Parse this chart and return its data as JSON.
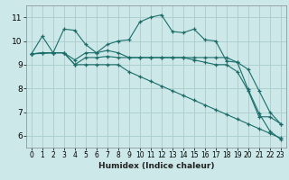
{
  "title": "",
  "xlabel": "Humidex (Indice chaleur)",
  "bg_color": "#cce8e8",
  "grid_color": "#aacccc",
  "line_color": "#1a6e6a",
  "xlim": [
    -0.5,
    23.5
  ],
  "ylim": [
    5.5,
    11.5
  ],
  "xticks": [
    0,
    1,
    2,
    3,
    4,
    5,
    6,
    7,
    8,
    9,
    10,
    11,
    12,
    13,
    14,
    15,
    16,
    17,
    18,
    19,
    20,
    21,
    22,
    23
  ],
  "yticks": [
    6,
    7,
    8,
    9,
    10,
    11
  ],
  "series": [
    {
      "x": [
        0,
        1,
        2,
        3,
        4,
        5,
        6,
        7,
        8,
        9,
        10,
        11,
        12,
        13,
        14,
        15,
        16,
        17,
        18,
        19,
        20,
        21,
        22,
        23
      ],
      "y": [
        9.45,
        10.2,
        9.5,
        10.5,
        10.45,
        9.85,
        9.5,
        9.85,
        10.0,
        10.05,
        10.8,
        11.0,
        11.1,
        10.4,
        10.35,
        10.5,
        10.05,
        10.0,
        9.15,
        9.1,
        7.95,
        6.95,
        6.2,
        5.85
      ]
    },
    {
      "x": [
        0,
        1,
        2,
        3,
        4,
        5,
        6,
        7,
        8,
        9,
        10,
        11,
        12,
        13,
        14,
        15,
        16,
        17,
        18,
        19,
        20,
        21,
        22,
        23
      ],
      "y": [
        9.45,
        9.5,
        9.5,
        9.5,
        9.0,
        9.3,
        9.3,
        9.35,
        9.3,
        9.3,
        9.3,
        9.3,
        9.3,
        9.3,
        9.3,
        9.3,
        9.3,
        9.3,
        9.3,
        9.1,
        8.8,
        7.9,
        7.0,
        6.5
      ]
    },
    {
      "x": [
        0,
        2,
        3,
        4,
        5,
        6,
        7,
        8,
        9,
        10,
        11,
        12,
        13,
        14,
        15,
        16,
        17,
        18,
        19,
        20,
        21,
        22,
        23
      ],
      "y": [
        9.45,
        9.5,
        9.5,
        9.2,
        9.5,
        9.5,
        9.6,
        9.5,
        9.3,
        9.3,
        9.3,
        9.3,
        9.3,
        9.3,
        9.2,
        9.1,
        9.0,
        9.0,
        8.7,
        7.9,
        6.8,
        6.8,
        6.5
      ]
    },
    {
      "x": [
        0,
        1,
        2,
        3,
        4,
        5,
        6,
        7,
        8,
        9,
        10,
        11,
        12,
        13,
        14,
        15,
        16,
        17,
        18,
        19,
        20,
        21,
        22,
        23
      ],
      "y": [
        9.45,
        9.5,
        9.5,
        9.5,
        9.0,
        9.0,
        9.0,
        9.0,
        9.0,
        8.7,
        8.5,
        8.3,
        8.1,
        7.9,
        7.7,
        7.5,
        7.3,
        7.1,
        6.9,
        6.7,
        6.5,
        6.3,
        6.1,
        5.9
      ]
    }
  ]
}
